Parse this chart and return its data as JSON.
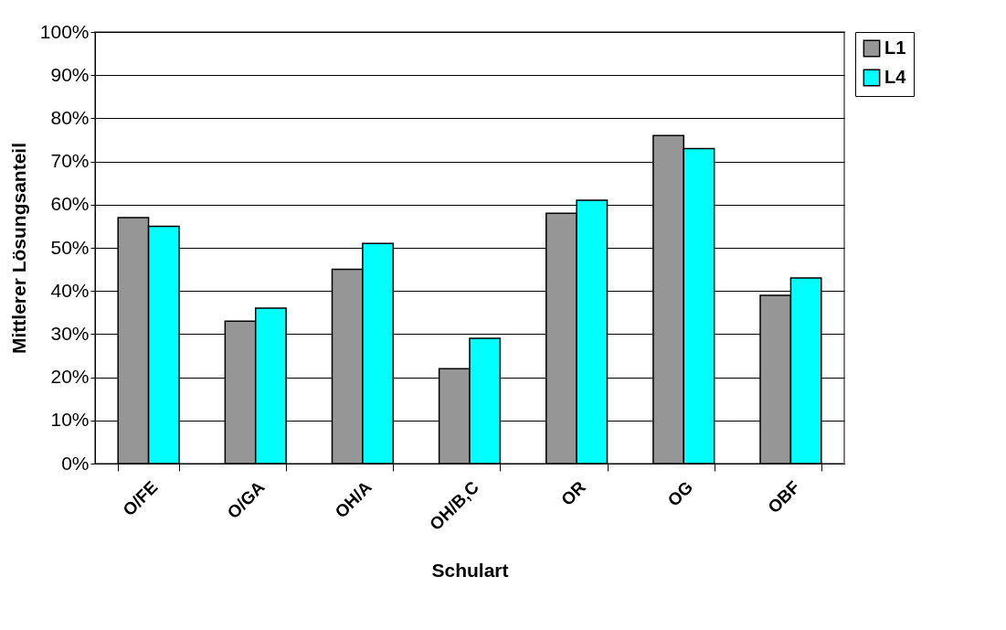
{
  "chart_data": {
    "type": "bar",
    "xlabel": "Schulart",
    "ylabel": "Mittlerer Lösungsanteil",
    "categories": [
      "O/FE",
      "O/GA",
      "OH/A",
      "OH/B,C",
      "OR",
      "OG",
      "OBF"
    ],
    "series": [
      {
        "name": "L1",
        "color": "#969696",
        "values": [
          57,
          33,
          45,
          22,
          58,
          76,
          39
        ]
      },
      {
        "name": "L4",
        "color": "#00ffff",
        "values": [
          55,
          36,
          51,
          29,
          61,
          73,
          43
        ]
      }
    ],
    "ylim": [
      0,
      100
    ],
    "yticks": [
      {
        "value": 0,
        "label": "0%"
      },
      {
        "value": 10,
        "label": "10%"
      },
      {
        "value": 20,
        "label": "20%"
      },
      {
        "value": 30,
        "label": "30%"
      },
      {
        "value": 40,
        "label": "40%"
      },
      {
        "value": 50,
        "label": "50%"
      },
      {
        "value": 60,
        "label": "60%"
      },
      {
        "value": 70,
        "label": "70%"
      },
      {
        "value": 80,
        "label": "80%"
      },
      {
        "value": 90,
        "label": "90%"
      },
      {
        "value": 100,
        "label": "100%"
      }
    ],
    "grid": "y",
    "legend": "right"
  }
}
